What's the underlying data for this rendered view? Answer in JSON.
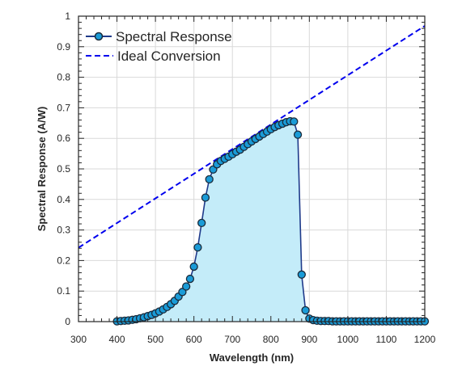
{
  "chart_data": {
    "type": "area",
    "xlabel": "Wavelength (nm)",
    "ylabel": "Spectral Response (A/W)",
    "xlim": [
      300,
      1200
    ],
    "ylim": [
      0,
      1
    ],
    "xticks": [
      300,
      400,
      500,
      600,
      700,
      800,
      900,
      1000,
      1100,
      1200
    ],
    "yticks": [
      0,
      0.1,
      0.2,
      0.3,
      0.4,
      0.5,
      0.6,
      0.7,
      0.8,
      0.9,
      1
    ],
    "xtick_labels": [
      "300",
      "400",
      "500",
      "600",
      "700",
      "800",
      "900",
      "1000",
      "1100",
      "1200"
    ],
    "ytick_labels": [
      "0",
      "0.1",
      "0.2",
      "0.3",
      "0.4",
      "0.5",
      "0.6",
      "0.7",
      "0.8",
      "0.9",
      "1"
    ],
    "grid": true,
    "legend": "top-left",
    "colors": {
      "series_line": "#1f3a8a",
      "marker_fill": "#1a9bd7",
      "marker_edge": "#1a2a3a",
      "fill_area": "#c4ecf9",
      "ideal_line": "#0000ee",
      "grid": "#d9d9d9",
      "axis": "#262626"
    },
    "series": [
      {
        "name": "Spectral Response",
        "style": "line-markers-filled",
        "x": [
          400,
          410,
          420,
          430,
          440,
          450,
          460,
          470,
          480,
          490,
          500,
          510,
          520,
          530,
          540,
          550,
          560,
          570,
          580,
          590,
          600,
          610,
          620,
          630,
          640,
          650,
          660,
          670,
          680,
          690,
          700,
          710,
          720,
          730,
          740,
          750,
          760,
          770,
          780,
          790,
          800,
          810,
          820,
          830,
          840,
          850,
          860,
          870,
          880,
          890,
          900,
          910,
          920,
          930,
          940,
          950,
          960,
          970,
          980,
          990,
          1000,
          1010,
          1020,
          1030,
          1040,
          1050,
          1060,
          1070,
          1080,
          1090,
          1100,
          1110,
          1120,
          1130,
          1140,
          1150,
          1160,
          1170,
          1180,
          1190,
          1200
        ],
        "y": [
          0.001,
          0.002,
          0.003,
          0.004,
          0.006,
          0.008,
          0.011,
          0.014,
          0.018,
          0.022,
          0.027,
          0.033,
          0.04,
          0.048,
          0.057,
          0.068,
          0.082,
          0.097,
          0.115,
          0.14,
          0.18,
          0.243,
          0.323,
          0.406,
          0.466,
          0.498,
          0.515,
          0.526,
          0.533,
          0.54,
          0.548,
          0.556,
          0.563,
          0.572,
          0.581,
          0.59,
          0.598,
          0.606,
          0.614,
          0.622,
          0.63,
          0.637,
          0.643,
          0.648,
          0.653,
          0.656,
          0.655,
          0.612,
          0.154,
          0.037,
          0.01,
          0.005,
          0.003,
          0.002,
          0.002,
          0.002,
          0.001,
          0.001,
          0.001,
          0.001,
          0.001,
          0.001,
          0.001,
          0.001,
          0.001,
          0.001,
          0.001,
          0.001,
          0.001,
          0.001,
          0.001,
          0.001,
          0.001,
          0.001,
          0.001,
          0.001,
          0.001,
          0.001,
          0.001,
          0.001,
          0.001
        ]
      },
      {
        "name": "Ideal Conversion",
        "style": "dashed",
        "x": [
          300,
          1200
        ],
        "y": [
          0.242,
          0.968
        ]
      }
    ]
  }
}
